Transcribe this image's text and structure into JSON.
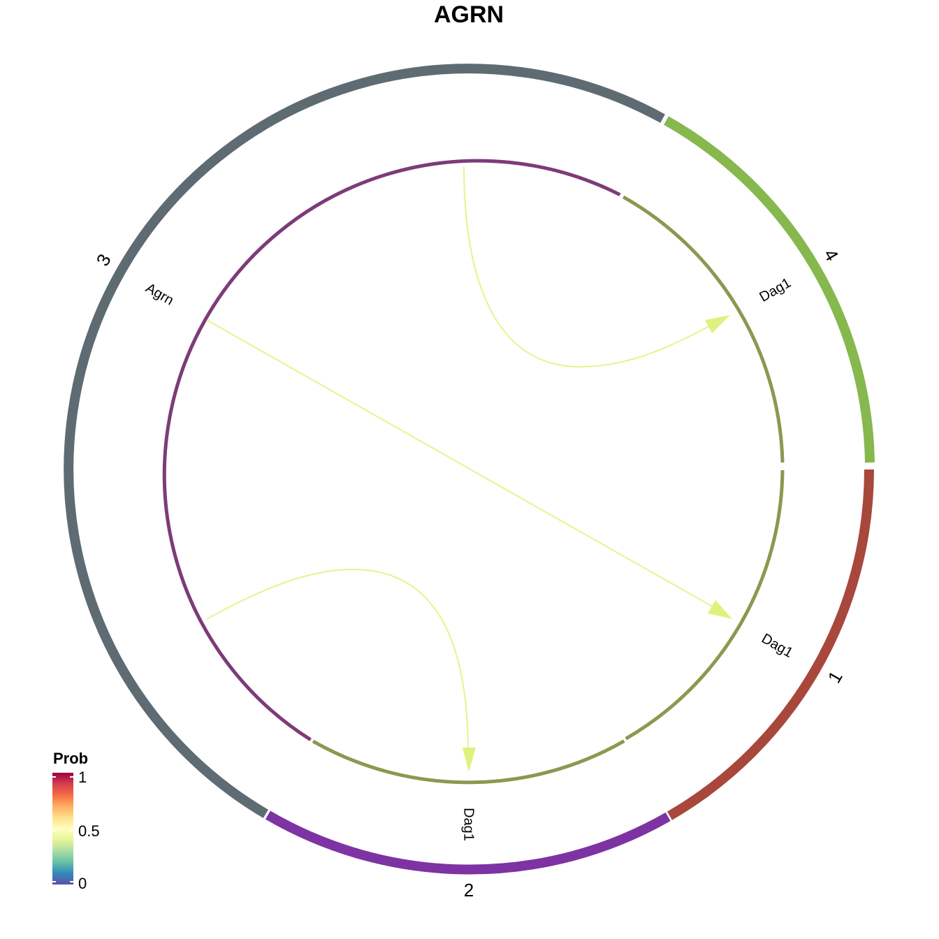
{
  "title": "AGRN",
  "colors": {
    "group_1": "#A8473C",
    "group_2": "#7E33A3",
    "group_3": "#5E6B73",
    "group_4": "#86B84E",
    "ligand_track": "#7D3B78",
    "receptor_track": "#8A9950",
    "link": "#E3F58A",
    "arrow": "#DDF27D"
  },
  "chart_data": {
    "type": "chord",
    "groups": [
      {
        "label": "1",
        "genes": [
          {
            "label": "Dag1",
            "role": "receptor"
          }
        ]
      },
      {
        "label": "2",
        "genes": [
          {
            "label": "Dag1",
            "role": "receptor"
          }
        ]
      },
      {
        "label": "3",
        "genes": [
          {
            "label": "Agrn",
            "role": "ligand"
          }
        ]
      },
      {
        "label": "4",
        "genes": [
          {
            "label": "Dag1",
            "role": "receptor"
          }
        ]
      }
    ],
    "links": [
      {
        "source": "3",
        "source_gene": "Agrn",
        "target": "4",
        "target_gene": "Dag1",
        "prob": 0.5
      },
      {
        "source": "3",
        "source_gene": "Agrn",
        "target": "1",
        "target_gene": "Dag1",
        "prob": 0.5
      },
      {
        "source": "3",
        "source_gene": "Agrn",
        "target": "2",
        "target_gene": "Dag1",
        "prob": 0.5
      }
    ],
    "legend": {
      "title": "Prob",
      "ticks": [
        "1",
        "0.5",
        "0"
      ],
      "range": [
        0,
        1
      ],
      "palette": [
        "#9E0142",
        "#D53E4F",
        "#F46D43",
        "#FDAE61",
        "#FEE08B",
        "#FFFFBF",
        "#E6F598",
        "#ABDDA4",
        "#66C2A5",
        "#3288BD",
        "#5E4FA2"
      ],
      "placement": "bottom-left"
    }
  }
}
